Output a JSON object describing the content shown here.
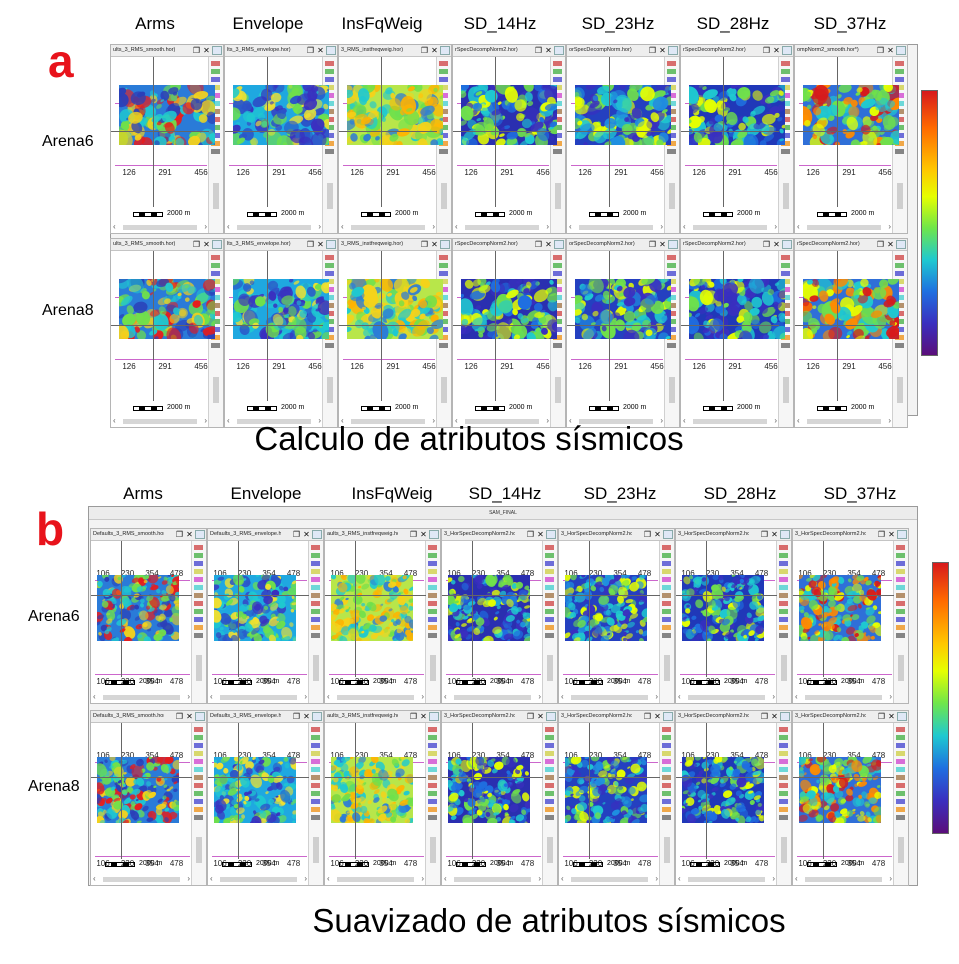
{
  "colors": {
    "panel_letter": "#e8131b",
    "pink_lines": "#cc66cc",
    "colorbar_stops": [
      "#d7191c",
      "#ff6a00",
      "#ffc800",
      "#e6ff00",
      "#6ee64b",
      "#1fc9d0",
      "#1f6fe0",
      "#3a2fbf",
      "#5a0e7a"
    ]
  },
  "icons": {
    "window_restore": "window-restore-icon",
    "window_close": "close-icon",
    "side_toolbar": "toolbar-icon-strip"
  },
  "panels": [
    {
      "letter": "a",
      "caption": "Calculo de atributos sísmicos",
      "frame_title": "",
      "columns": [
        "Arms",
        "Envelope",
        "InsFqWeig",
        "SD_14Hz",
        "SD_23Hz",
        "SD_28Hz",
        "SD_37Hz"
      ],
      "rows": [
        {
          "label": "Arena6",
          "titles": [
            "ults_3_RMS_smooth.hor)",
            "lts_3_RMS_envelope.hor)",
            "3_RMS_instfreqweig.hor)",
            "rSpecDecompNorm2.hor)",
            "orSpecDecompNorm.hor)",
            "rSpecDecompNorm2.hor)",
            "ompNorm2_smooth.hor*)"
          ]
        },
        {
          "label": "Arena8",
          "titles": [
            "ults_3_RMS_smooth.hor)",
            "lts_3_RMS_envelope.hor)",
            "3_RMS_instfreqweig.hor)",
            "rSpecDecompNorm2.hor)",
            "orSpecDecompNorm2.hor)",
            "rSpecDecompNorm2.hor)",
            "rSpecDecompNorm2.hor)"
          ]
        }
      ],
      "ticks": [
        "126",
        "291",
        "456"
      ],
      "scale_label": "2000 m"
    },
    {
      "letter": "b",
      "caption": "Suavizado de atributos sísmicos",
      "frame_title": "SAM_FINAL",
      "columns": [
        "Arms",
        "Envelope",
        "InsFqWeig",
        "SD_14Hz",
        "SD_23Hz",
        "SD_28Hz",
        "SD_37Hz"
      ],
      "rows": [
        {
          "label": "Arena6",
          "titles": [
            "Defaults_3_RMS_smooth.hor)",
            "Defaults_3_RMS_envelope.hor)",
            "aults_3_RMS_instfreqweig.hor)",
            "3_HorSpecDecompNorm2.hor)",
            "3_HorSpecDecompNorm2.hor)",
            "3_HorSpecDecompNorm2.hor)",
            "3_HorSpecDecompNorm2.hor)"
          ]
        },
        {
          "label": "Arena8",
          "titles": [
            "Defaults_3_RMS_smooth.hor)",
            "Defaults_3_RMS_envelope.hor)",
            "aults_3_RMS_instfreqweig.hor)",
            "3_HorSpecDecompNorm2.hor)",
            "3_HorSpecDecompNorm2.hor)",
            "3_HorSpecDecompNorm2.hor)",
            "3_HorSpecDecompNorm2.hor)"
          ]
        }
      ],
      "ticks": [
        "106",
        "230",
        "354",
        "478"
      ],
      "scale_label": "2000 m"
    }
  ],
  "map_palettes": {
    "Arms": {
      "base": "#2a7bd8",
      "blobs": [
        "#e81c1c",
        "#f5d21a",
        "#6fe04b",
        "#1fc9d0",
        "#2b3fb8"
      ]
    },
    "Envelope": {
      "base": "#1fa8e0",
      "blobs": [
        "#6fe04b",
        "#f0e030",
        "#2b55c8",
        "#1fc9d0",
        "#3a2fbf"
      ]
    },
    "InsFqWeig": {
      "base": "#b8e64a",
      "blobs": [
        "#f5d21a",
        "#ffb300",
        "#6fe04b",
        "#1fc9d0",
        "#2b7bd8"
      ]
    },
    "SD_14Hz": {
      "base": "#2a2fb0",
      "blobs": [
        "#1f6fe0",
        "#1fc9d0",
        "#6fe04b",
        "#e6ff00",
        "#3a2fbf"
      ]
    },
    "SD_23Hz": {
      "base": "#2440c0",
      "blobs": [
        "#1f8fe0",
        "#1fc9d0",
        "#6fe04b",
        "#3a2fbf",
        "#e6ff00"
      ]
    },
    "SD_28Hz": {
      "base": "#2038b8",
      "blobs": [
        "#1f6fe0",
        "#1fc9d0",
        "#6fe04b",
        "#3a2fbf",
        "#e6ff00"
      ]
    },
    "SD_37Hz": {
      "base": "#2f6fd8",
      "blobs": [
        "#1fc9d0",
        "#6fe04b",
        "#e6ff00",
        "#ff8a00",
        "#d7191c"
      ]
    }
  }
}
